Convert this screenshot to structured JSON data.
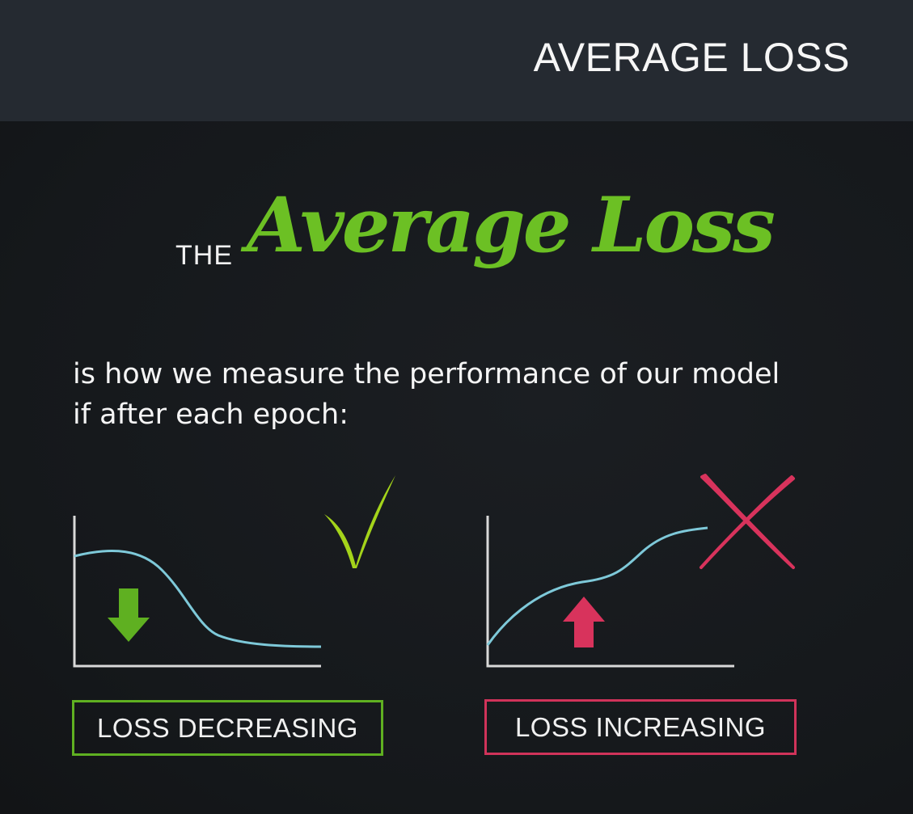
{
  "header": {
    "title": "AVERAGE LOSS"
  },
  "title": {
    "prefix": "THE",
    "script": "Average Loss"
  },
  "description": {
    "line1": "is how we measure the performance of our model",
    "line2": "if after each epoch:"
  },
  "colors": {
    "accent_green": "#6cc024",
    "check_green": "#a4d41a",
    "cross_red": "#d8335c",
    "curve_cyan": "#7ec9d9",
    "axis_grey": "#d9d9d9"
  },
  "panels": [
    {
      "id": "decreasing",
      "label": "LOSS DECREASING",
      "trend": "down",
      "arrow_icon": "arrow-down-icon",
      "mark_icon": "checkmark-icon"
    },
    {
      "id": "increasing",
      "label": "LOSS INCREASING",
      "trend": "up",
      "arrow_icon": "arrow-up-icon",
      "mark_icon": "cross-icon"
    }
  ]
}
